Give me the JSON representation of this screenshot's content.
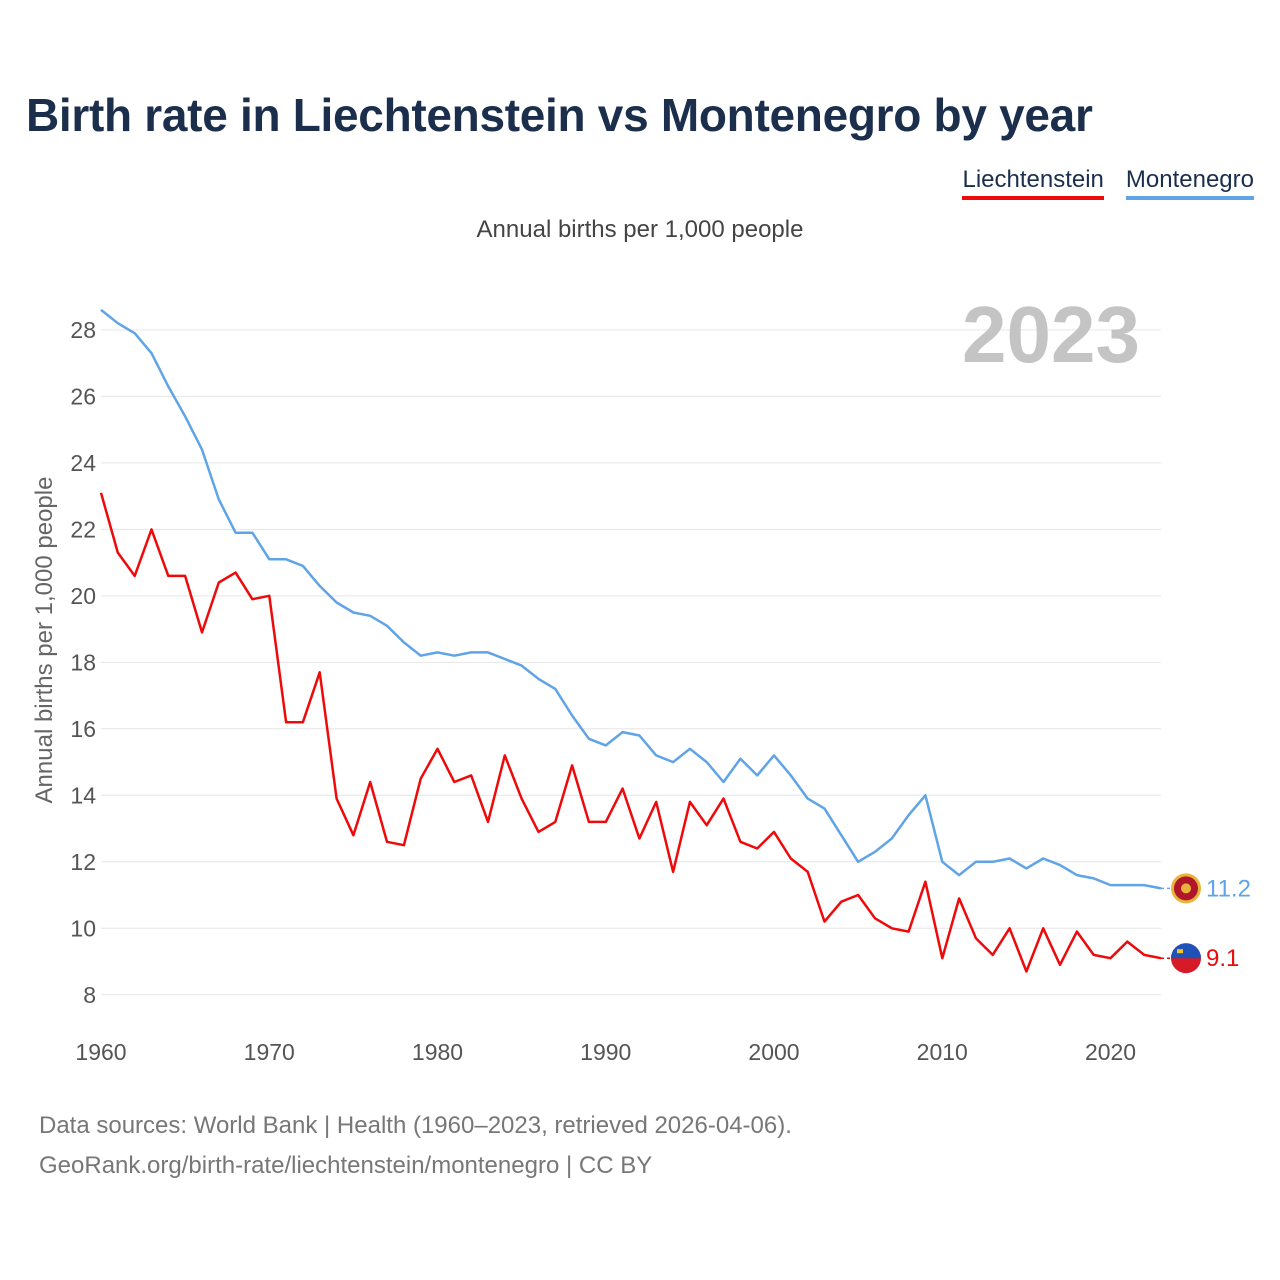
{
  "title": "Birth rate in Liechtenstein vs Montenegro by year",
  "subtitle": "Annual births per 1,000 people",
  "legend": [
    {
      "name": "Liechtenstein",
      "color": "#ee0a0a"
    },
    {
      "name": "Montenegro",
      "color": "#5fa4e6"
    }
  ],
  "year_label": "2023",
  "footer": {
    "line1": "Data sources: World Bank | Health (1960–2023, retrieved 2026-04-06).",
    "line2": "GeoRank.org/birth-rate/liechtenstein/montenegro | CC BY"
  },
  "chart_data": {
    "type": "line",
    "title": "Birth rate in Liechtenstein vs Montenegro by year",
    "xlabel": "",
    "ylabel": "Annual births per 1,000 people",
    "xlim": [
      1960,
      2023
    ],
    "ylim": [
      7,
      29.2
    ],
    "x_ticks": [
      1960,
      1970,
      1980,
      1990,
      2000,
      2010,
      2020
    ],
    "y_ticks": [
      8,
      10,
      12,
      14,
      16,
      18,
      20,
      22,
      24,
      26,
      28
    ],
    "grid": true,
    "legend_position": "top-right",
    "x": [
      1960,
      1961,
      1962,
      1963,
      1964,
      1965,
      1966,
      1967,
      1968,
      1969,
      1970,
      1971,
      1972,
      1973,
      1974,
      1975,
      1976,
      1977,
      1978,
      1979,
      1980,
      1981,
      1982,
      1983,
      1984,
      1985,
      1986,
      1987,
      1988,
      1989,
      1990,
      1991,
      1992,
      1993,
      1994,
      1995,
      1996,
      1997,
      1998,
      1999,
      2000,
      2001,
      2002,
      2003,
      2004,
      2005,
      2006,
      2007,
      2008,
      2009,
      2010,
      2011,
      2012,
      2013,
      2014,
      2015,
      2016,
      2017,
      2018,
      2019,
      2020,
      2021,
      2022,
      2023
    ],
    "series": [
      {
        "name": "Liechtenstein",
        "color": "#ee0a0a",
        "end_label": "9.1",
        "values": [
          23.1,
          21.3,
          20.6,
          22.0,
          20.6,
          20.6,
          18.9,
          20.4,
          20.7,
          19.9,
          20.0,
          16.2,
          16.2,
          17.7,
          13.9,
          12.8,
          14.4,
          12.6,
          12.5,
          14.5,
          15.4,
          14.4,
          14.6,
          13.2,
          15.2,
          13.9,
          12.9,
          13.2,
          14.9,
          13.2,
          13.2,
          14.2,
          12.7,
          13.8,
          11.7,
          13.8,
          13.1,
          13.9,
          12.6,
          12.4,
          12.9,
          12.1,
          11.7,
          10.2,
          10.8,
          11.0,
          10.3,
          10.0,
          9.9,
          11.4,
          9.1,
          10.9,
          9.7,
          9.2,
          10.0,
          8.7,
          10.0,
          8.9,
          9.9,
          9.2,
          9.1,
          9.6,
          9.2,
          9.1
        ]
      },
      {
        "name": "Montenegro",
        "color": "#5fa4e6",
        "end_label": "11.2",
        "values": [
          28.6,
          28.2,
          27.9,
          27.3,
          26.3,
          25.4,
          24.4,
          22.9,
          21.9,
          21.9,
          21.1,
          21.1,
          20.9,
          20.3,
          19.8,
          19.5,
          19.4,
          19.1,
          18.6,
          18.2,
          18.3,
          18.2,
          18.3,
          18.3,
          18.1,
          17.9,
          17.5,
          17.2,
          16.4,
          15.7,
          15.5,
          15.9,
          15.8,
          15.2,
          15.0,
          15.4,
          15.0,
          14.4,
          15.1,
          14.6,
          15.2,
          14.6,
          13.9,
          13.6,
          12.8,
          12.0,
          12.3,
          12.7,
          13.4,
          14.0,
          12.0,
          11.6,
          12.0,
          12.0,
          12.1,
          11.8,
          12.1,
          11.9,
          11.6,
          11.5,
          11.3,
          11.3,
          11.3,
          11.2
        ]
      }
    ]
  }
}
